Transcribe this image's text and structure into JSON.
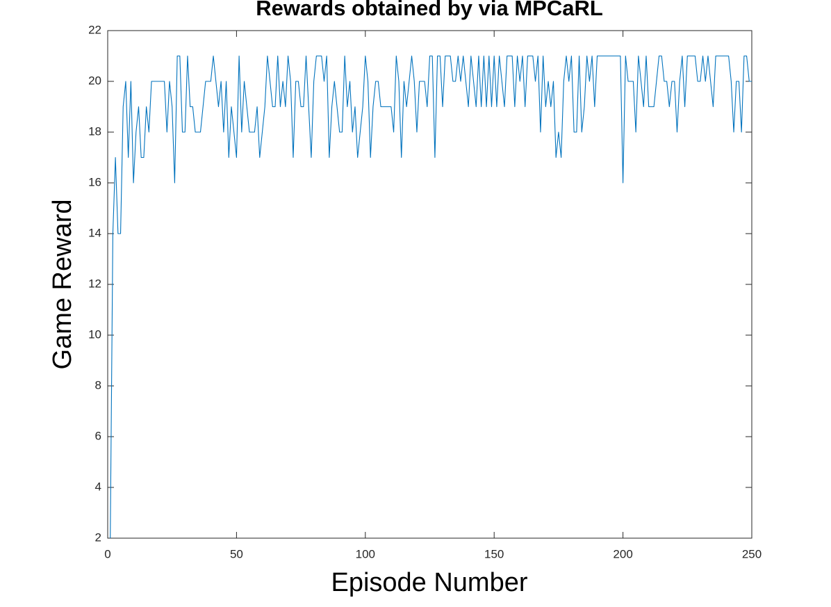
{
  "chart_data": {
    "type": "line",
    "title": "Rewards obtained by via MPCaRL",
    "xlabel": "Episode Number",
    "ylabel": "Game Reward",
    "x": [
      1,
      2,
      3,
      4,
      5,
      6,
      7,
      8,
      9,
      10,
      11,
      12,
      13,
      14,
      15,
      16,
      17,
      18,
      19,
      20,
      21,
      22,
      23,
      24,
      25,
      26,
      27,
      28,
      29,
      30,
      31,
      32,
      33,
      34,
      35,
      36,
      37,
      38,
      39,
      40,
      41,
      42,
      43,
      44,
      45,
      46,
      47,
      48,
      49,
      50,
      51,
      52,
      53,
      54,
      55,
      56,
      57,
      58,
      59,
      60,
      61,
      62,
      63,
      64,
      65,
      66,
      67,
      68,
      69,
      70,
      71,
      72,
      73,
      74,
      75,
      76,
      77,
      78,
      79,
      80,
      81,
      82,
      83,
      84,
      85,
      86,
      87,
      88,
      89,
      90,
      91,
      92,
      93,
      94,
      95,
      96,
      97,
      98,
      99,
      100,
      101,
      102,
      103,
      104,
      105,
      106,
      107,
      108,
      109,
      110,
      111,
      112,
      113,
      114,
      115,
      116,
      117,
      118,
      119,
      120,
      121,
      122,
      123,
      124,
      125,
      126,
      127,
      128,
      129,
      130,
      131,
      132,
      133,
      134,
      135,
      136,
      137,
      138,
      139,
      140,
      141,
      142,
      143,
      144,
      145,
      146,
      147,
      148,
      149,
      150,
      151,
      152,
      153,
      154,
      155,
      156,
      157,
      158,
      159,
      160,
      161,
      162,
      163,
      164,
      165,
      166,
      167,
      168,
      169,
      170,
      171,
      172,
      173,
      174,
      175,
      176,
      177,
      178,
      179,
      180,
      181,
      182,
      183,
      184,
      185,
      186,
      187,
      188,
      189,
      190,
      191,
      192,
      193,
      194,
      195,
      196,
      197,
      198,
      199,
      200,
      201,
      202,
      203,
      204,
      205,
      206,
      207,
      208,
      209,
      210,
      211,
      212,
      213,
      214,
      215,
      216,
      217,
      218,
      219,
      220,
      221,
      222,
      223,
      224,
      225,
      226,
      227,
      228,
      229,
      230,
      231,
      232,
      233,
      234,
      235,
      236,
      237,
      238,
      239,
      240,
      241,
      242,
      243,
      244,
      245,
      246,
      247,
      248,
      249,
      250
    ],
    "series": [
      {
        "color": "#0072bd",
        "values": [
          2,
          14,
          17,
          14,
          14,
          19,
          20,
          17,
          20,
          16,
          18,
          19,
          17,
          17,
          19,
          18,
          20,
          20,
          20,
          20,
          20,
          20,
          18,
          20,
          19,
          16,
          21,
          21,
          18,
          18,
          21,
          19,
          19,
          18,
          18,
          18,
          19,
          20,
          20,
          20,
          21,
          20,
          19,
          20,
          18,
          20,
          17,
          19,
          18,
          17,
          21,
          18,
          20,
          19,
          18,
          18,
          18,
          19,
          17,
          18,
          19,
          21,
          20,
          19,
          19,
          21,
          19,
          20,
          19,
          21,
          20,
          17,
          20,
          20,
          19,
          19,
          21,
          19,
          17,
          20,
          21,
          21,
          21,
          20,
          21,
          17,
          19,
          20,
          19,
          18,
          18,
          21,
          19,
          20,
          18,
          19,
          17,
          18,
          19,
          21,
          20,
          17,
          19,
          20,
          20,
          19,
          19,
          19,
          19,
          19,
          18,
          21,
          20,
          17,
          20,
          19,
          20,
          21,
          20,
          18,
          20,
          20,
          20,
          19,
          21,
          21,
          17,
          21,
          21,
          19,
          21,
          21,
          21,
          20,
          20,
          21,
          20,
          21,
          20,
          19,
          21,
          20,
          19,
          21,
          19,
          21,
          19,
          21,
          19,
          21,
          19,
          21,
          20,
          19,
          21,
          21,
          21,
          19,
          21,
          20,
          21,
          19,
          21,
          21,
          21,
          20,
          21,
          18,
          21,
          19,
          20,
          19,
          20,
          17,
          18,
          17,
          20,
          21,
          20,
          21,
          18,
          18,
          21,
          18,
          19,
          21,
          20,
          21,
          19,
          21,
          21,
          21,
          21,
          21,
          21,
          21,
          21,
          21,
          21,
          16,
          21,
          20,
          20,
          20,
          18,
          21,
          20,
          19,
          21,
          19,
          19,
          19,
          20,
          21,
          21,
          20,
          20,
          19,
          20,
          20,
          18,
          20,
          21,
          19,
          21,
          21,
          21,
          21,
          20,
          20,
          21,
          20,
          21,
          20,
          19,
          21,
          21,
          21,
          21,
          21,
          21,
          20,
          18,
          20,
          20,
          18,
          21,
          21,
          20,
          20
        ]
      }
    ],
    "xlim": [
      0,
      250
    ],
    "ylim": [
      2,
      22
    ],
    "xticks": [
      0,
      50,
      100,
      150,
      200,
      250
    ],
    "yticks": [
      2,
      4,
      6,
      8,
      10,
      12,
      14,
      16,
      18,
      20,
      22
    ]
  }
}
